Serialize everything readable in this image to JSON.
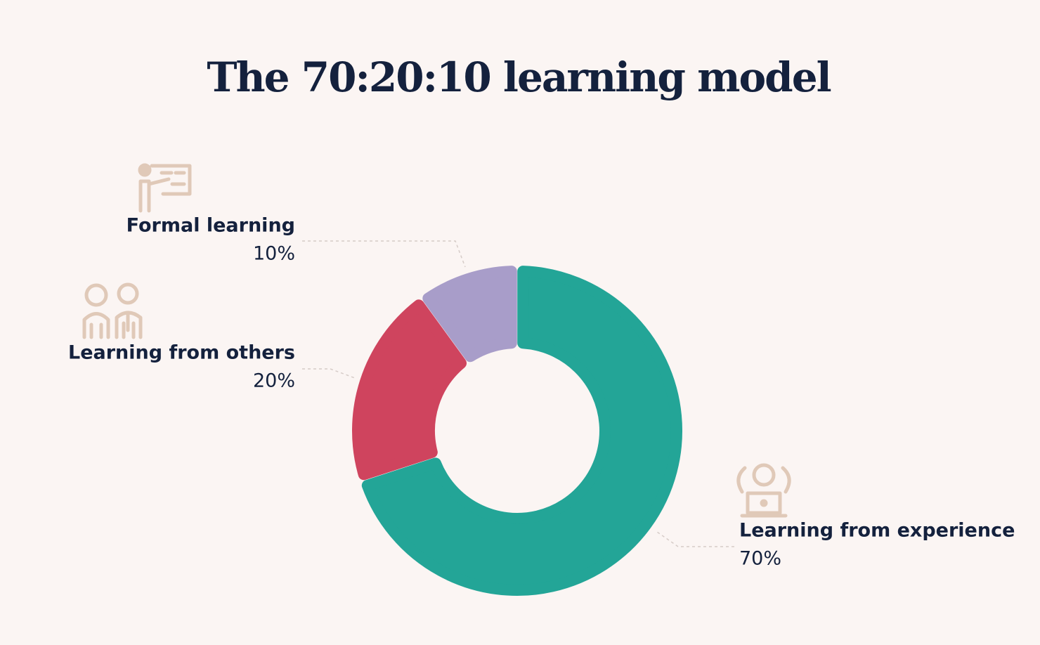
{
  "chart_data": {
    "type": "donut",
    "title": "The 70:20:10 learning model",
    "categories": [
      "Learning from experience",
      "Learning from others",
      "Formal learning"
    ],
    "values": [
      70,
      20,
      10
    ],
    "value_labels": [
      "70%",
      "20%",
      "10%"
    ],
    "colors": [
      "#23a597",
      "#cf445e",
      "#a89dc9"
    ]
  }
}
